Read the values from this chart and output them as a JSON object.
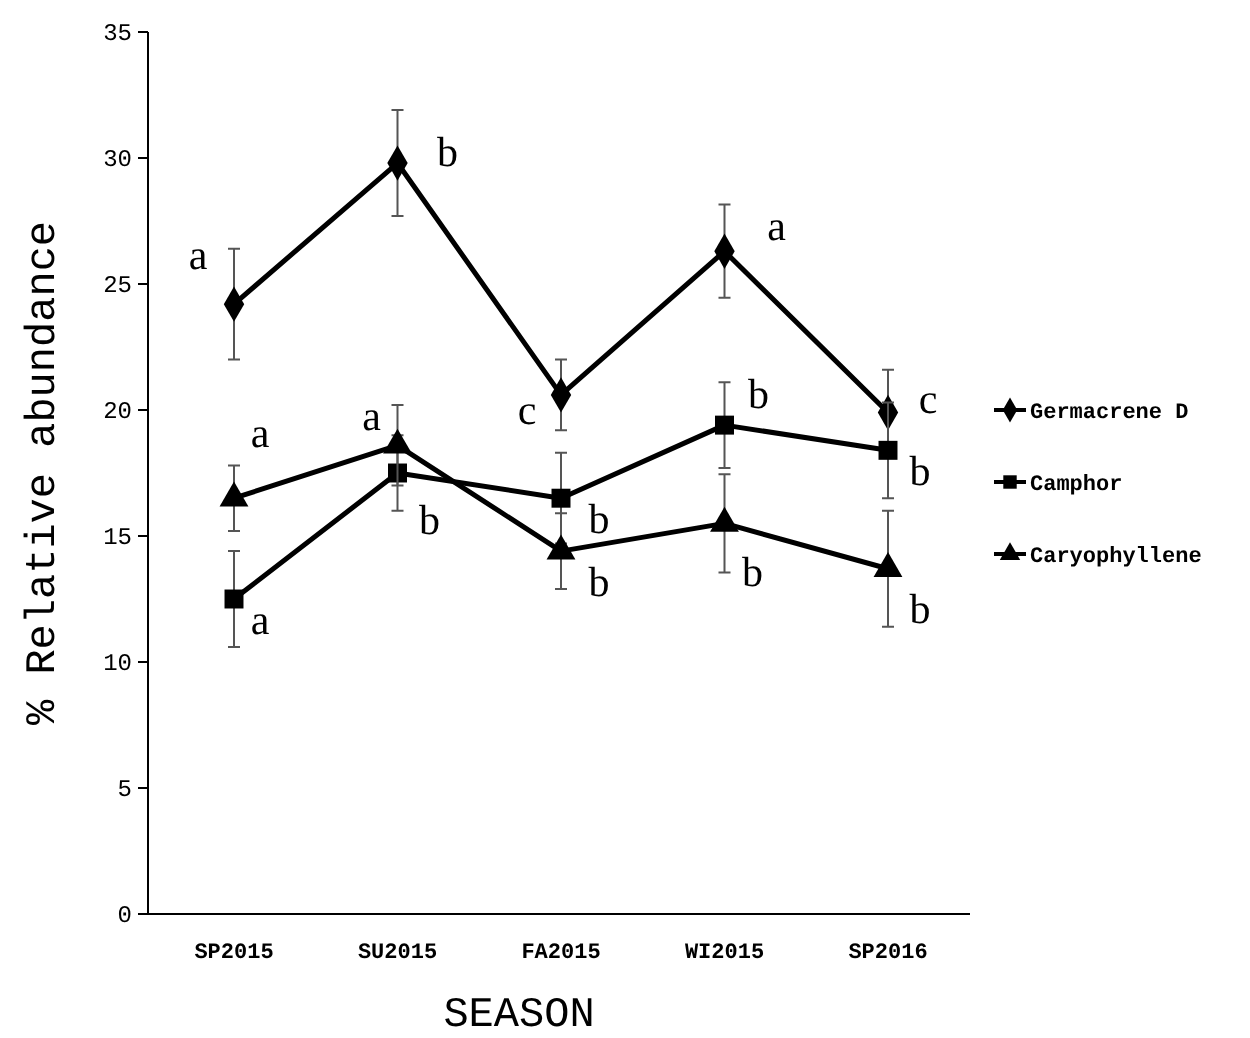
{
  "chart_data": {
    "type": "line",
    "xlabel": "SEASON",
    "ylabel": "% Relative abundance",
    "categories": [
      "SP2015",
      "SU2015",
      "FA2015",
      "WI2015",
      "SP2016"
    ],
    "series": [
      {
        "name": "Germacrene D",
        "color": "#000000",
        "marker": "diamond",
        "values": [
          24.2,
          29.8,
          20.6,
          26.3,
          19.9
        ],
        "errors": [
          2.2,
          2.1,
          1.4,
          1.85,
          1.7
        ]
      },
      {
        "name": "Camphor",
        "color": "#000000",
        "marker": "square",
        "values": [
          12.5,
          17.5,
          16.5,
          19.4,
          18.4
        ],
        "errors": [
          1.9,
          1.5,
          1.8,
          1.7,
          1.9
        ]
      },
      {
        "name": "Caryophyllene",
        "color": "#000000",
        "marker": "triangle",
        "values": [
          16.5,
          18.6,
          14.4,
          15.5,
          13.7
        ],
        "errors": [
          1.3,
          1.6,
          1.5,
          1.95,
          2.3
        ]
      }
    ],
    "ylim": [
      0,
      35
    ],
    "yticks": [
      0,
      5,
      10,
      15,
      20,
      25,
      30,
      35
    ],
    "grid": false,
    "legend": "right",
    "annotations": [
      {
        "text": "a",
        "x": "SP2015",
        "y": 24.2
      },
      {
        "text": "b",
        "x": "SU2015",
        "y": 29.8
      },
      {
        "text": "c",
        "x": "FA2015",
        "y": 20.6
      },
      {
        "text": "a",
        "x": "WI2015",
        "y": 26.3
      },
      {
        "text": "c",
        "x": "SP2016",
        "y": 19.9
      },
      {
        "text": "a",
        "x": "SP2015",
        "y": 16.5
      },
      {
        "text": "a",
        "x": "SU2015",
        "y": 18.6
      },
      {
        "text": "a",
        "x": "SP2015",
        "y": 12.5
      },
      {
        "text": "b",
        "x": "SU2015",
        "y": 17.5
      },
      {
        "text": "b",
        "x": "FA2015",
        "y": 16.5
      },
      {
        "text": "b",
        "x": "WI2015",
        "y": 19.4
      },
      {
        "text": "b",
        "x": "SP2016",
        "y": 18.4
      },
      {
        "text": "b",
        "x": "FA2015",
        "y": 14.4
      },
      {
        "text": "b",
        "x": "WI2015",
        "y": 15.5
      },
      {
        "text": "b",
        "x": "SP2016",
        "y": 13.7
      }
    ]
  }
}
